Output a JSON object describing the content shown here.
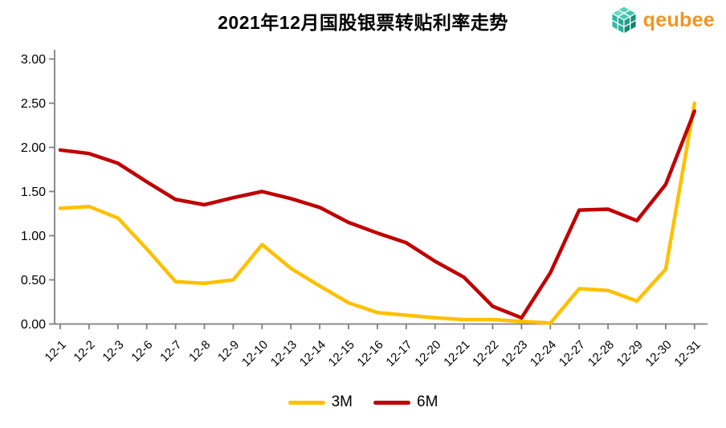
{
  "header": {
    "logo_text": "qeubee",
    "logo_color": "#F39421",
    "logo_icon": "cube-cluster-icon",
    "logo_icon_color": "#2FB49E"
  },
  "chart_data": {
    "type": "line",
    "title": "2021年12月国股银票转贴利率走势",
    "categories": [
      "12-1",
      "12-2",
      "12-3",
      "12-6",
      "12-7",
      "12-8",
      "12-9",
      "12-10",
      "12-13",
      "12-14",
      "12-15",
      "12-16",
      "12-17",
      "12-20",
      "12-21",
      "12-22",
      "12-23",
      "12-24",
      "12-27",
      "12-28",
      "12-29",
      "12-30",
      "12-31"
    ],
    "series": [
      {
        "name": "3M",
        "color": "#FFC000",
        "values": [
          1.31,
          1.33,
          1.2,
          0.85,
          0.48,
          0.46,
          0.5,
          0.9,
          0.63,
          0.43,
          0.24,
          0.13,
          0.1,
          0.07,
          0.05,
          0.05,
          0.03,
          0.01,
          0.4,
          0.38,
          0.26,
          0.62,
          2.5
        ]
      },
      {
        "name": "6M",
        "color": "#C00000",
        "values": [
          1.97,
          1.93,
          1.82,
          1.61,
          1.41,
          1.35,
          1.43,
          1.5,
          1.42,
          1.32,
          1.15,
          1.03,
          0.92,
          0.71,
          0.53,
          0.2,
          0.07,
          0.58,
          1.29,
          1.3,
          1.17,
          1.58,
          2.41
        ]
      }
    ],
    "xlabel": "",
    "ylabel": "",
    "ylim": [
      0,
      3
    ],
    "ytick_values": [
      0,
      0.5,
      1,
      1.5,
      2,
      2.5,
      3
    ],
    "ytick_labels": [
      "0.00",
      "0.50",
      "1.00",
      "1.50",
      "2.00",
      "2.50",
      "3.00"
    ],
    "grid": false,
    "legend_position": "bottom",
    "axis_color": "#7F7F7F",
    "text_color": "#000000"
  }
}
